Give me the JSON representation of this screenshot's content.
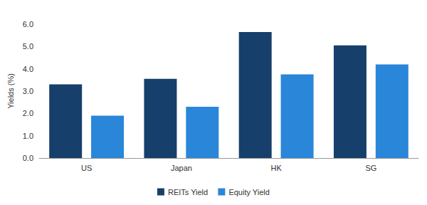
{
  "chart_data": {
    "type": "bar",
    "y_label": "Yields (%)",
    "categories": [
      "US",
      "Japan",
      "HK",
      "SG"
    ],
    "series": [
      {
        "name": "REITs Yield",
        "color": "#173f6b",
        "values": [
          3.3,
          3.55,
          5.65,
          5.05
        ]
      },
      {
        "name": "Equity Yield",
        "color": "#2a86d9",
        "values": [
          1.9,
          2.3,
          3.75,
          4.2
        ]
      }
    ],
    "ylim": [
      0,
      6
    ],
    "yticks": [
      {
        "value": 0,
        "label": "0.0"
      },
      {
        "value": 1,
        "label": "1.0"
      },
      {
        "value": 2,
        "label": "2.0"
      },
      {
        "value": 3,
        "label": "3.0"
      },
      {
        "value": 4,
        "label": "4.0"
      },
      {
        "value": 5,
        "label": "5.0"
      },
      {
        "value": 6,
        "label": "6.0"
      }
    ],
    "grid": false,
    "legend": "bottom"
  }
}
